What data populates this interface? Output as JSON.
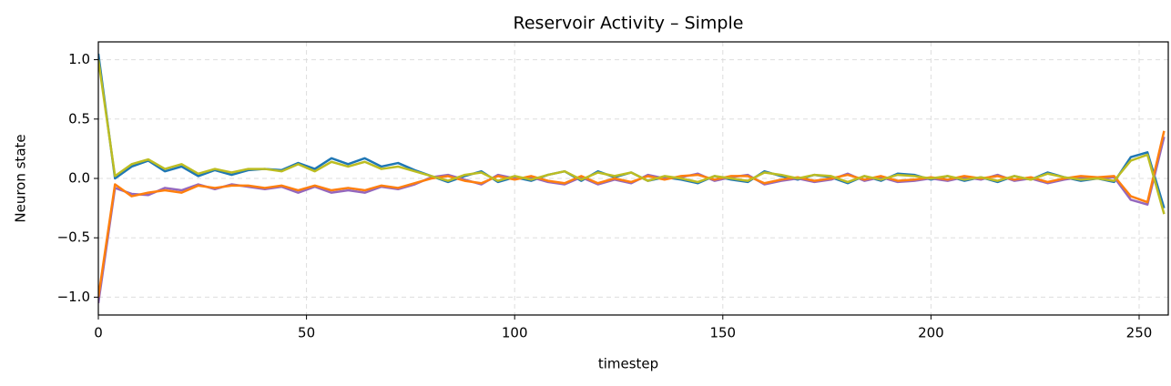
{
  "chart_data": {
    "type": "line",
    "title": "Reservoir Activity – Simple",
    "xlabel": "timestep",
    "ylabel": "Neuron state",
    "x": [
      0,
      4,
      8,
      12,
      16,
      20,
      24,
      28,
      32,
      36,
      40,
      44,
      48,
      52,
      56,
      60,
      64,
      68,
      72,
      76,
      80,
      84,
      88,
      92,
      96,
      100,
      104,
      108,
      112,
      116,
      120,
      124,
      128,
      132,
      136,
      140,
      144,
      148,
      152,
      156,
      160,
      164,
      168,
      172,
      176,
      180,
      184,
      188,
      192,
      196,
      200,
      204,
      208,
      212,
      216,
      220,
      224,
      228,
      232,
      236,
      240,
      244,
      248,
      252,
      256
    ],
    "series": [
      {
        "color": "#1f77b4",
        "values": [
          1.05,
          0.0,
          0.1,
          0.15,
          0.06,
          0.1,
          0.02,
          0.07,
          0.03,
          0.07,
          0.08,
          0.07,
          0.13,
          0.08,
          0.17,
          0.12,
          0.17,
          0.1,
          0.13,
          0.07,
          0.02,
          -0.03,
          0.02,
          0.06,
          -0.03,
          0.01,
          -0.02,
          0.03,
          0.06,
          -0.02,
          0.06,
          0.01,
          0.05,
          -0.02,
          0.01,
          -0.01,
          -0.04,
          0.02,
          -0.01,
          -0.03,
          0.06,
          0.02,
          -0.01,
          0.03,
          0.01,
          -0.04,
          0.02,
          -0.02,
          0.04,
          0.03,
          -0.01,
          0.02,
          -0.02,
          0.01,
          -0.03,
          0.02,
          -0.01,
          0.05,
          0.01,
          -0.02,
          0.0,
          -0.03,
          0.18,
          0.22,
          -0.25
        ]
      },
      {
        "color": "#9467bd",
        "values": [
          -1.05,
          -0.08,
          -0.13,
          -0.14,
          -0.08,
          -0.1,
          -0.05,
          -0.09,
          -0.05,
          -0.07,
          -0.09,
          -0.07,
          -0.12,
          -0.07,
          -0.12,
          -0.1,
          -0.12,
          -0.07,
          -0.09,
          -0.05,
          0.01,
          0.03,
          -0.01,
          -0.05,
          0.03,
          0.0,
          0.01,
          -0.03,
          -0.05,
          0.01,
          -0.05,
          -0.01,
          -0.04,
          0.03,
          0.0,
          0.01,
          0.04,
          -0.02,
          0.01,
          0.03,
          -0.05,
          -0.02,
          0.0,
          -0.03,
          -0.01,
          0.04,
          -0.02,
          0.01,
          -0.03,
          -0.02,
          0.0,
          -0.02,
          0.01,
          -0.01,
          0.03,
          -0.02,
          0.0,
          -0.04,
          -0.01,
          0.01,
          0.0,
          0.01,
          -0.18,
          -0.22,
          0.35
        ]
      },
      {
        "color": "#ff7f0e",
        "values": [
          -1.0,
          -0.05,
          -0.15,
          -0.12,
          -0.1,
          -0.12,
          -0.06,
          -0.08,
          -0.06,
          -0.06,
          -0.08,
          -0.06,
          -0.1,
          -0.06,
          -0.1,
          -0.08,
          -0.1,
          -0.06,
          -0.08,
          -0.04,
          0.0,
          0.02,
          -0.02,
          -0.04,
          0.02,
          -0.01,
          0.02,
          -0.02,
          -0.04,
          0.02,
          -0.04,
          0.0,
          -0.03,
          0.02,
          -0.01,
          0.02,
          0.03,
          -0.01,
          0.02,
          0.02,
          -0.04,
          -0.01,
          0.01,
          -0.02,
          0.0,
          0.03,
          -0.01,
          0.02,
          -0.02,
          -0.01,
          0.01,
          -0.01,
          0.02,
          0.0,
          0.02,
          -0.01,
          0.01,
          -0.03,
          0.0,
          0.02,
          0.01,
          0.02,
          -0.15,
          -0.2,
          0.4
        ]
      },
      {
        "color": "#bcbd22",
        "values": [
          1.0,
          0.02,
          0.12,
          0.16,
          0.08,
          0.12,
          0.04,
          0.08,
          0.05,
          0.08,
          0.08,
          0.06,
          0.12,
          0.06,
          0.14,
          0.1,
          0.14,
          0.08,
          0.1,
          0.06,
          0.02,
          -0.02,
          0.03,
          0.05,
          -0.02,
          0.02,
          -0.01,
          0.03,
          0.06,
          -0.01,
          0.05,
          0.02,
          0.05,
          -0.02,
          0.02,
          0.0,
          -0.03,
          0.02,
          0.0,
          -0.02,
          0.05,
          0.03,
          0.0,
          0.03,
          0.02,
          -0.03,
          0.02,
          -0.01,
          0.03,
          0.02,
          0.0,
          0.02,
          -0.01,
          0.01,
          -0.02,
          0.02,
          -0.01,
          0.04,
          0.01,
          -0.01,
          0.0,
          -0.02,
          0.15,
          0.2,
          -0.3
        ]
      }
    ],
    "xlim": [
      0,
      257
    ],
    "ylim": [
      -1.15,
      1.15
    ],
    "xticks": [
      0,
      50,
      100,
      150,
      200,
      250
    ],
    "yticks": [
      {
        "value": -1,
        "label": "−1.0"
      },
      {
        "value": -0.5,
        "label": "−0.5"
      },
      {
        "value": 0,
        "label": "0.0"
      },
      0.5,
      {
        "value": 1,
        "label": "1.0"
      }
    ],
    "grid": true
  }
}
